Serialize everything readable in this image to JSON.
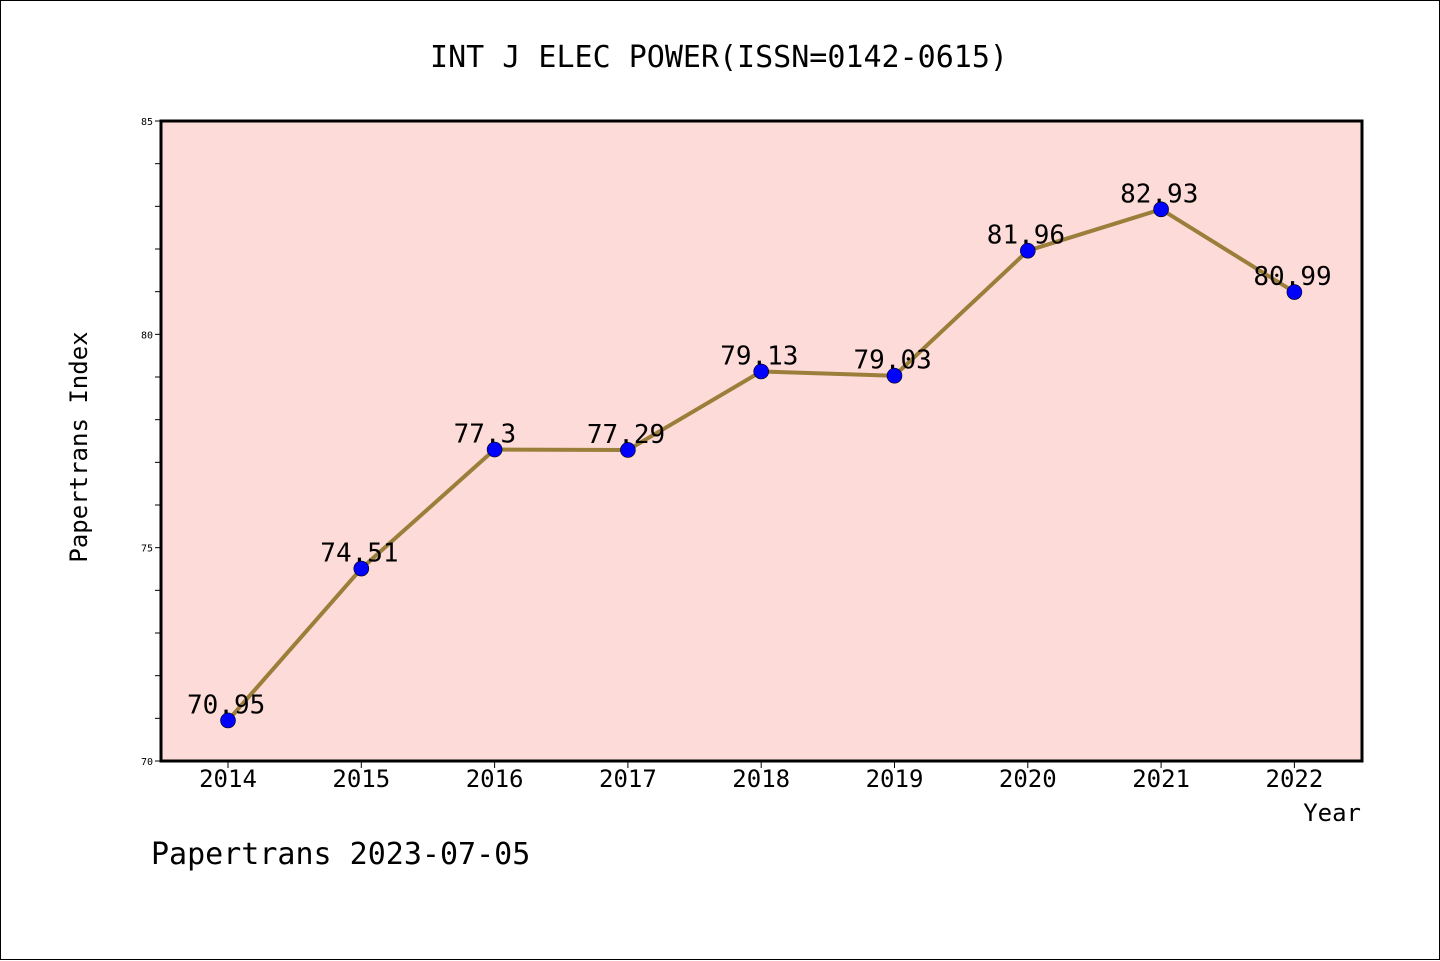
{
  "chart_data": {
    "type": "line",
    "title": "INT J ELEC POWER(ISSN=0142-0615)",
    "xlabel": "Year",
    "ylabel": "Papertrans Index",
    "x": [
      "2014",
      "2015",
      "2016",
      "2017",
      "2018",
      "2019",
      "2020",
      "2021",
      "2022"
    ],
    "series": [
      {
        "values": [
          70.95,
          74.51,
          77.3,
          77.29,
          79.13,
          79.03,
          81.96,
          82.93,
          80.99
        ],
        "labels": [
          "70.95",
          "74.51",
          "77.3",
          "77.29",
          "79.13",
          "79.03",
          "81.96",
          "82.93",
          "80.99"
        ]
      }
    ],
    "ylim": [
      70,
      85
    ],
    "yticks": [
      "70",
      "75",
      "80",
      "85"
    ],
    "grid": false,
    "colors": {
      "plot_background": "#fddbd8",
      "line": "#9b7e3a",
      "marker": "#0000ff"
    }
  },
  "footer": "Papertrans 2023-07-05"
}
